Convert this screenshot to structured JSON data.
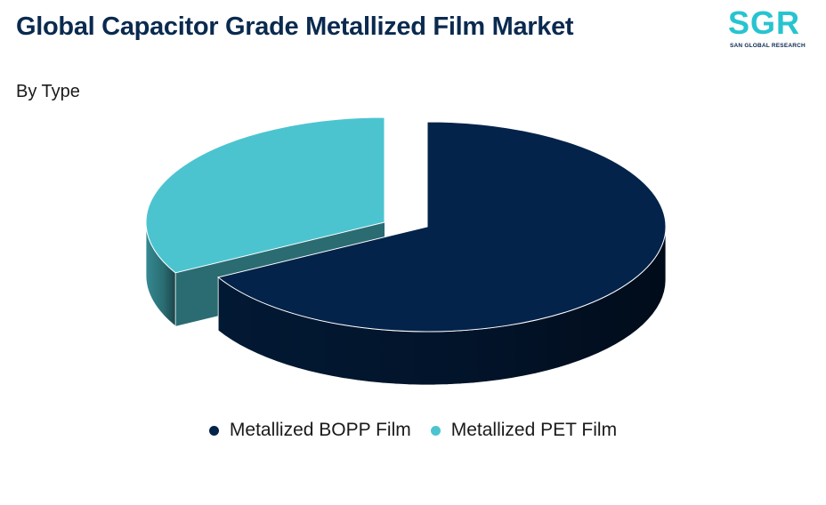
{
  "header": {
    "title": "Global Capacitor Grade Metallized Film Market",
    "subtitle": "By Type"
  },
  "logo": {
    "mark": "SGR",
    "tagline": "SAN GLOBAL RESEARCH"
  },
  "chart_data": {
    "type": "pie",
    "title": "Global Capacitor Grade Metallized Film Market",
    "subtitle": "By Type",
    "categories": [
      "Metallized BOPP Film",
      "Metallized PET Film"
    ],
    "values": [
      67,
      33
    ],
    "colors": [
      "#03234a",
      "#4cc4d0"
    ],
    "legend_position": "bottom",
    "style": "3d-exploded"
  }
}
